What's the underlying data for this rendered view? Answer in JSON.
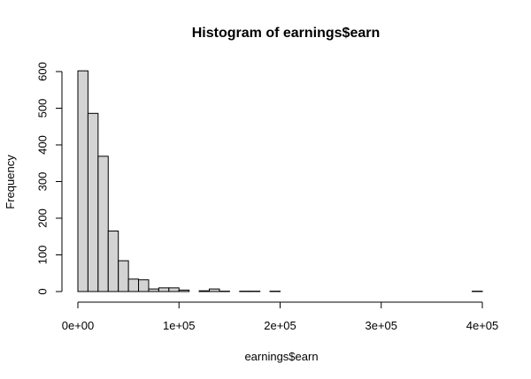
{
  "chart_data": {
    "type": "bar",
    "title": "Histogram of earnings$earn",
    "xlabel": "earnings$earn",
    "ylabel": "Frequency",
    "bin_width": 10000,
    "bin_edges_start": 0,
    "values": [
      602,
      486,
      369,
      165,
      84,
      34,
      32,
      7,
      10,
      10,
      4,
      0,
      2,
      7,
      1,
      0,
      1,
      1,
      0,
      1,
      0,
      0,
      0,
      0,
      0,
      0,
      0,
      0,
      0,
      0,
      0,
      0,
      0,
      0,
      0,
      0,
      0,
      0,
      0,
      1
    ],
    "xlim": [
      0,
      400000
    ],
    "ylim": [
      0,
      600
    ],
    "x_ticks": [
      0,
      100000,
      200000,
      300000,
      400000
    ],
    "x_tick_labels": [
      "0e+00",
      "1e+05",
      "2e+05",
      "3e+05",
      "4e+05"
    ],
    "y_ticks": [
      0,
      100,
      200,
      300,
      400,
      500,
      600
    ],
    "y_tick_labels": [
      "0",
      "100",
      "200",
      "300",
      "400",
      "500",
      "600"
    ],
    "bar_color": "#d3d3d3",
    "grid": false
  }
}
